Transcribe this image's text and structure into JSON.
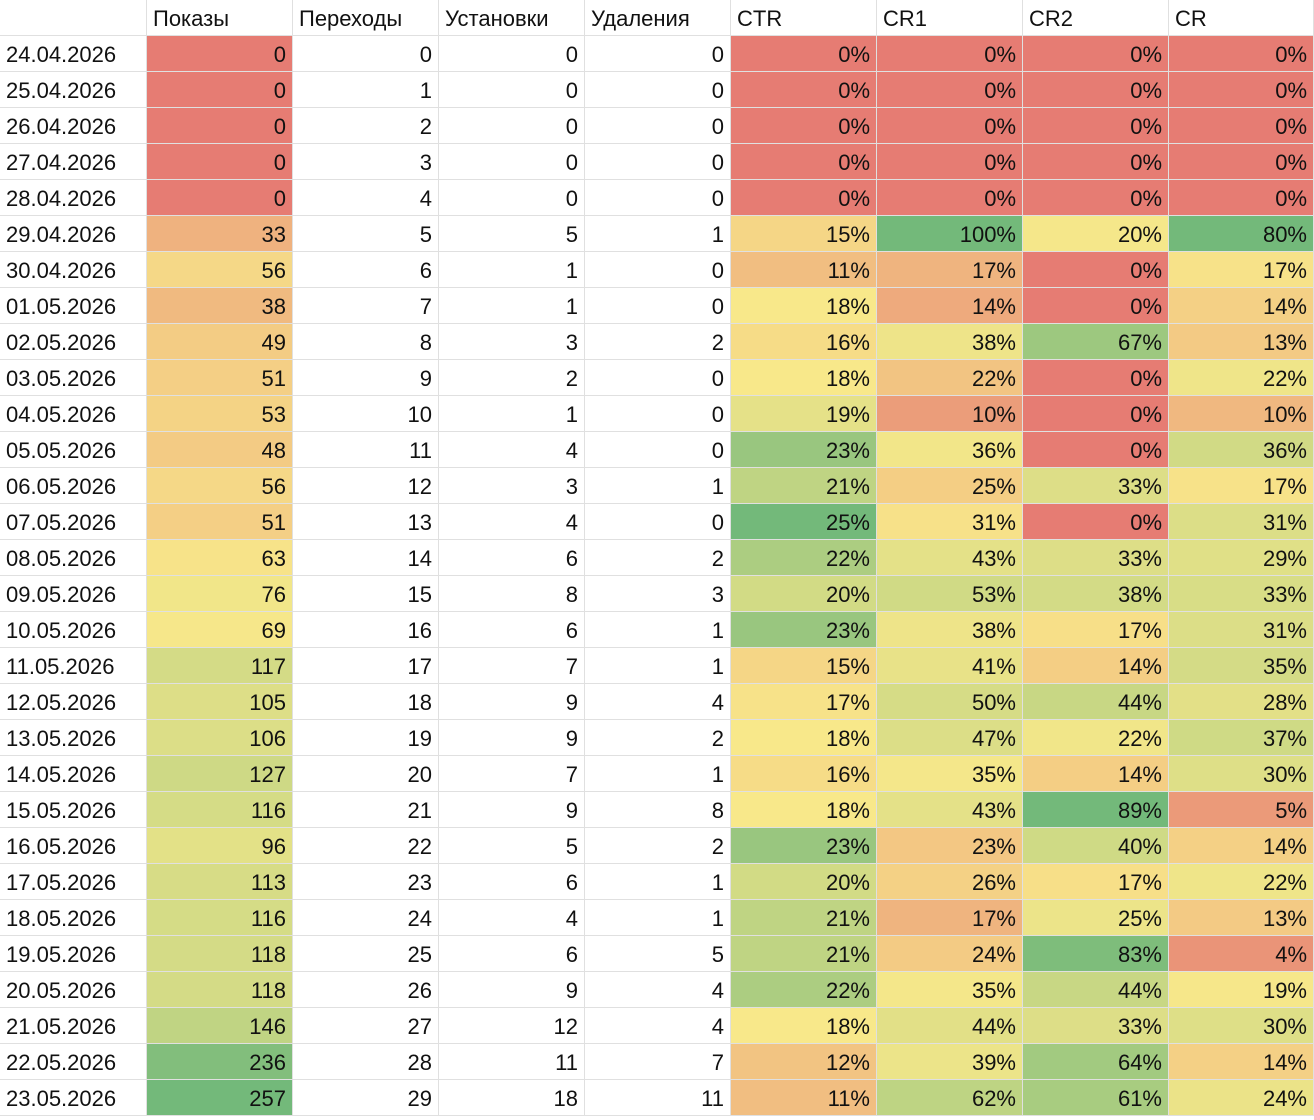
{
  "table": {
    "header": [
      "Показы",
      "Переходы",
      "Установки",
      "Удаления",
      "CTR",
      "CR1",
      "CR2",
      "CR"
    ],
    "color_scale": {
      "columns": [
        1,
        5,
        6,
        7,
        8
      ],
      "min": "#e67c73",
      "mid": "#f8e88a",
      "max": "#73b97a"
    },
    "rows": [
      [
        "24.04.2026",
        "0",
        "0",
        "0",
        "0",
        "0%",
        "0%",
        "0%",
        "0%"
      ],
      [
        "25.04.2026",
        "0",
        "1",
        "0",
        "0",
        "0%",
        "0%",
        "0%",
        "0%"
      ],
      [
        "26.04.2026",
        "0",
        "2",
        "0",
        "0",
        "0%",
        "0%",
        "0%",
        "0%"
      ],
      [
        "27.04.2026",
        "0",
        "3",
        "0",
        "0",
        "0%",
        "0%",
        "0%",
        "0%"
      ],
      [
        "28.04.2026",
        "0",
        "4",
        "0",
        "0",
        "0%",
        "0%",
        "0%",
        "0%"
      ],
      [
        "29.04.2026",
        "33",
        "5",
        "5",
        "1",
        "15%",
        "100%",
        "20%",
        "80%"
      ],
      [
        "30.04.2026",
        "56",
        "6",
        "1",
        "0",
        "11%",
        "17%",
        "0%",
        "17%"
      ],
      [
        "01.05.2026",
        "38",
        "7",
        "1",
        "0",
        "18%",
        "14%",
        "0%",
        "14%"
      ],
      [
        "02.05.2026",
        "49",
        "8",
        "3",
        "2",
        "16%",
        "38%",
        "67%",
        "13%"
      ],
      [
        "03.05.2026",
        "51",
        "9",
        "2",
        "0",
        "18%",
        "22%",
        "0%",
        "22%"
      ],
      [
        "04.05.2026",
        "53",
        "10",
        "1",
        "0",
        "19%",
        "10%",
        "0%",
        "10%"
      ],
      [
        "05.05.2026",
        "48",
        "11",
        "4",
        "0",
        "23%",
        "36%",
        "0%",
        "36%"
      ],
      [
        "06.05.2026",
        "56",
        "12",
        "3",
        "1",
        "21%",
        "25%",
        "33%",
        "17%"
      ],
      [
        "07.05.2026",
        "51",
        "13",
        "4",
        "0",
        "25%",
        "31%",
        "0%",
        "31%"
      ],
      [
        "08.05.2026",
        "63",
        "14",
        "6",
        "2",
        "22%",
        "43%",
        "33%",
        "29%"
      ],
      [
        "09.05.2026",
        "76",
        "15",
        "8",
        "3",
        "20%",
        "53%",
        "38%",
        "33%"
      ],
      [
        "10.05.2026",
        "69",
        "16",
        "6",
        "1",
        "23%",
        "38%",
        "17%",
        "31%"
      ],
      [
        "11.05.2026",
        "117",
        "17",
        "7",
        "1",
        "15%",
        "41%",
        "14%",
        "35%"
      ],
      [
        "12.05.2026",
        "105",
        "18",
        "9",
        "4",
        "17%",
        "50%",
        "44%",
        "28%"
      ],
      [
        "13.05.2026",
        "106",
        "19",
        "9",
        "2",
        "18%",
        "47%",
        "22%",
        "37%"
      ],
      [
        "14.05.2026",
        "127",
        "20",
        "7",
        "1",
        "16%",
        "35%",
        "14%",
        "30%"
      ],
      [
        "15.05.2026",
        "116",
        "21",
        "9",
        "8",
        "18%",
        "43%",
        "89%",
        "5%"
      ],
      [
        "16.05.2026",
        "96",
        "22",
        "5",
        "2",
        "23%",
        "23%",
        "40%",
        "14%"
      ],
      [
        "17.05.2026",
        "113",
        "23",
        "6",
        "1",
        "20%",
        "26%",
        "17%",
        "22%"
      ],
      [
        "18.05.2026",
        "116",
        "24",
        "4",
        "1",
        "21%",
        "17%",
        "25%",
        "13%"
      ],
      [
        "19.05.2026",
        "118",
        "25",
        "6",
        "5",
        "21%",
        "24%",
        "83%",
        "4%"
      ],
      [
        "20.05.2026",
        "118",
        "26",
        "9",
        "4",
        "22%",
        "35%",
        "44%",
        "19%"
      ],
      [
        "21.05.2026",
        "146",
        "27",
        "12",
        "4",
        "18%",
        "44%",
        "33%",
        "30%"
      ],
      [
        "22.05.2026",
        "236",
        "28",
        "11",
        "7",
        "12%",
        "39%",
        "64%",
        "14%"
      ],
      [
        "23.05.2026",
        "257",
        "29",
        "18",
        "11",
        "11%",
        "62%",
        "61%",
        "24%"
      ]
    ]
  }
}
